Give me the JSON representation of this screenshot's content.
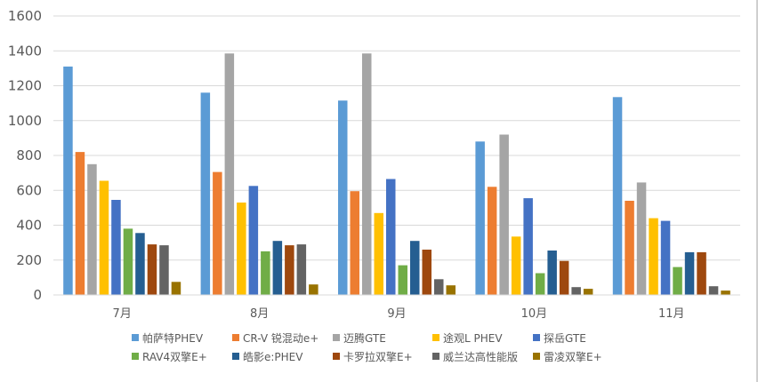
{
  "chart_data": {
    "type": "bar",
    "categories": [
      "7月",
      "8月",
      "9月",
      "10月",
      "11月"
    ],
    "ylim": [
      0,
      1600
    ],
    "yticks": [
      0,
      200,
      400,
      600,
      800,
      1000,
      1200,
      1400,
      1600
    ],
    "grid": true,
    "legend_position": "bottom",
    "series": [
      {
        "name": "帕萨特PHEV",
        "color": "#5b9bd5",
        "values": [
          1310,
          1160,
          1115,
          880,
          1135
        ]
      },
      {
        "name": "CR-V 锐混动e+",
        "color": "#ed7d31",
        "values": [
          820,
          705,
          595,
          620,
          540
        ]
      },
      {
        "name": "迈腾GTE",
        "color": "#a5a5a5",
        "values": [
          750,
          1385,
          1385,
          920,
          645
        ]
      },
      {
        "name": "途观L PHEV",
        "color": "#ffc000",
        "values": [
          655,
          530,
          470,
          335,
          440
        ]
      },
      {
        "name": "探岳GTE",
        "color": "#4472c4",
        "values": [
          545,
          625,
          665,
          555,
          425
        ]
      },
      {
        "name": "RAV4双擎E+",
        "color": "#70ad47",
        "values": [
          380,
          250,
          170,
          125,
          160
        ]
      },
      {
        "name": "皓影e:PHEV",
        "color": "#255e91",
        "values": [
          355,
          310,
          310,
          255,
          245
        ]
      },
      {
        "name": "卡罗拉双擎E+",
        "color": "#9e480e",
        "values": [
          290,
          285,
          260,
          195,
          245
        ]
      },
      {
        "name": "威兰达高性能版",
        "color": "#636363",
        "values": [
          285,
          290,
          90,
          45,
          50
        ]
      },
      {
        "name": "雷凌双擎E+",
        "color": "#997300",
        "values": [
          75,
          60,
          55,
          35,
          25
        ]
      }
    ]
  }
}
